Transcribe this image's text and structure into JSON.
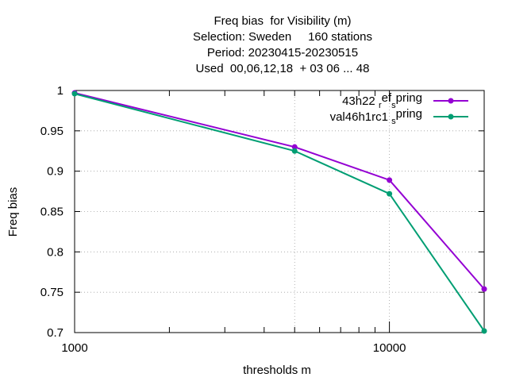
{
  "chart_data": {
    "type": "line",
    "title_lines": [
      "Freq bias  for Visibility (m)",
      "Selection: Sweden     160 stations",
      "Period: 20230415-20230515",
      "Used  00,06,12,18  + 03 06 ... 48"
    ],
    "xlabel": "thresholds m",
    "ylabel": "Freq bias",
    "x_scale": "log",
    "xlim": [
      1000,
      20000
    ],
    "ylim": [
      0.7,
      1.0
    ],
    "x_ticks": [
      {
        "value": 1000,
        "label": "1000"
      },
      {
        "value": 10000,
        "label": "10000"
      }
    ],
    "y_ticks": [
      {
        "value": 0.7,
        "label": "0.7"
      },
      {
        "value": 0.75,
        "label": "0.75"
      },
      {
        "value": 0.8,
        "label": "0.8"
      },
      {
        "value": 0.85,
        "label": "0.85"
      },
      {
        "value": 0.9,
        "label": "0.9"
      },
      {
        "value": 0.95,
        "label": "0.95"
      },
      {
        "value": 1.0,
        "label": "1"
      }
    ],
    "grid": true,
    "legend_position": "top-right",
    "x": [
      1000,
      5000,
      10000,
      20000
    ],
    "series": [
      {
        "name": "43h22 ref spring",
        "legend_parts": [
          "43h22 ",
          "r",
          "ef",
          "s",
          "pring"
        ],
        "color": "#9400d3",
        "values": [
          0.997,
          0.93,
          0.889,
          0.754
        ]
      },
      {
        "name": "val46h1rc1 spring",
        "legend_parts": [
          "val46h1rc1 ",
          "",
          "",
          "s",
          "pring"
        ],
        "color": "#009e73",
        "values": [
          0.996,
          0.925,
          0.872,
          0.702
        ]
      }
    ]
  }
}
